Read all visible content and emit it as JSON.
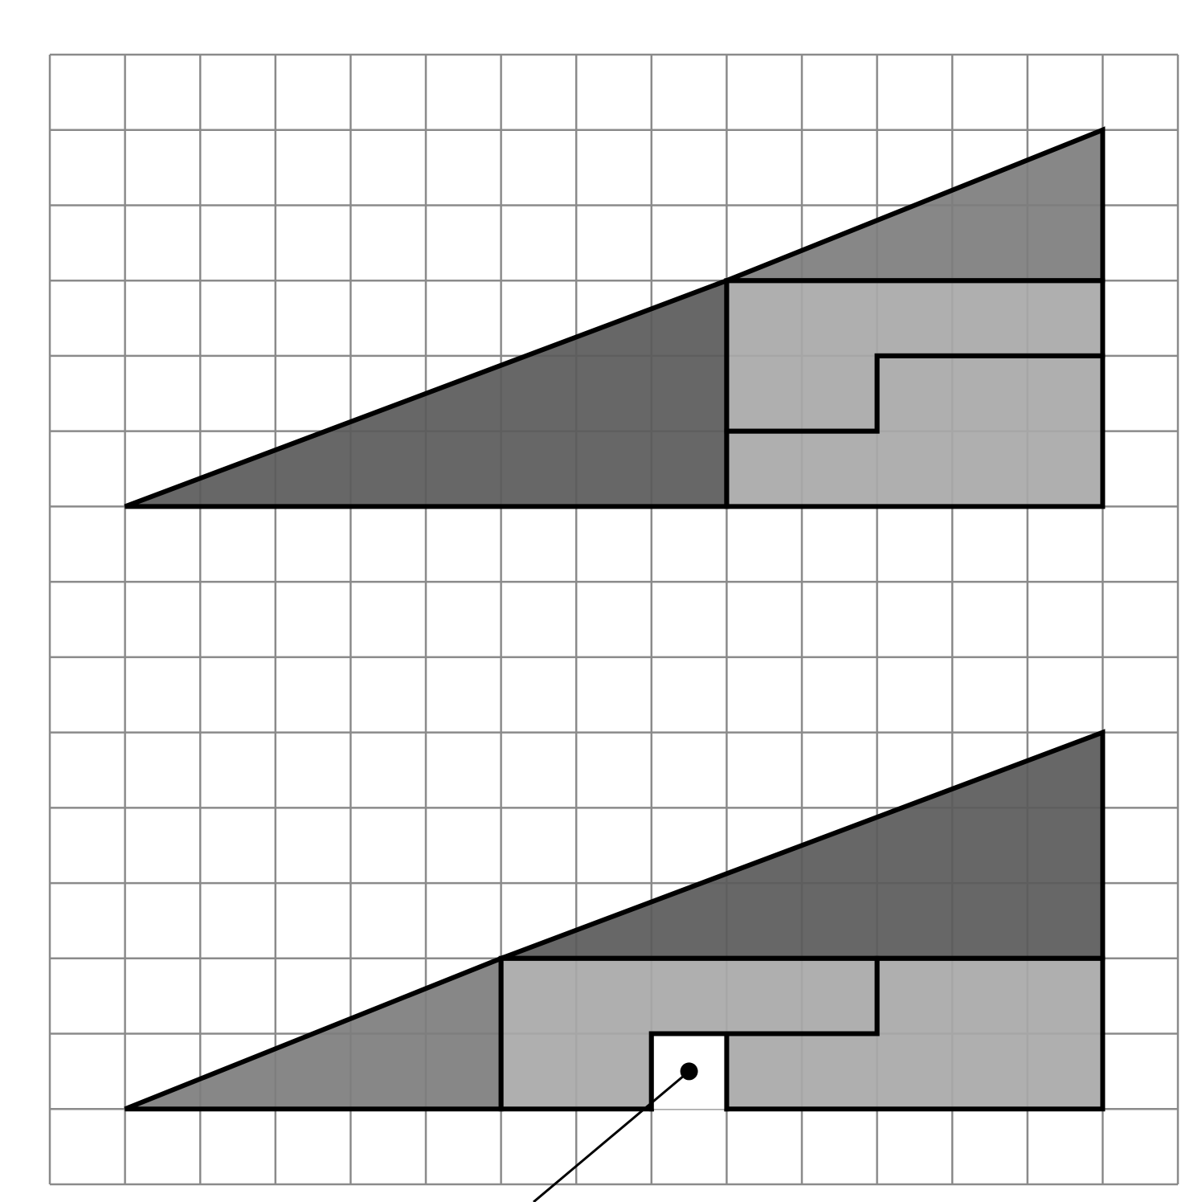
{
  "figure": {
    "description_visible_text": "",
    "grid": {
      "columns": 15,
      "rows": 15,
      "line_color": "#8a8a8a"
    },
    "colors": {
      "dark_gray": "#5a5a5a",
      "medium_gray": "#7d7d7d",
      "light_gray": "#a8a8a8",
      "outline": "#000000",
      "hole": "#ffffff"
    },
    "top_arrangement": {
      "pieces": [
        {
          "name": "large-triangle",
          "shade": "dark_gray",
          "grid_points": [
            [
              1,
              6
            ],
            [
              9,
              6
            ],
            [
              9,
              3
            ]
          ]
        },
        {
          "name": "small-triangle",
          "shade": "medium_gray",
          "grid_points": [
            [
              9,
              3
            ],
            [
              14,
              3
            ],
            [
              14,
              1
            ]
          ]
        },
        {
          "name": "l-shape-upper",
          "shade": "light_gray",
          "grid_points": [
            [
              9,
              3
            ],
            [
              14,
              3
            ],
            [
              14,
              4
            ],
            [
              11,
              4
            ],
            [
              11,
              5
            ],
            [
              9,
              5
            ]
          ]
        },
        {
          "name": "l-shape-lower",
          "shade": "light_gray",
          "grid_points": [
            [
              9,
              5
            ],
            [
              11,
              5
            ],
            [
              11,
              4
            ],
            [
              14,
              4
            ],
            [
              14,
              6
            ],
            [
              9,
              6
            ]
          ]
        }
      ]
    },
    "bottom_arrangement": {
      "pieces": [
        {
          "name": "small-triangle",
          "shade": "medium_gray",
          "grid_points": [
            [
              1,
              14
            ],
            [
              6,
              14
            ],
            [
              6,
              12
            ]
          ]
        },
        {
          "name": "large-triangle",
          "shade": "dark_gray",
          "grid_points": [
            [
              6,
              12
            ],
            [
              14,
              12
            ],
            [
              14,
              9
            ]
          ]
        },
        {
          "name": "l-shape-left",
          "shade": "light_gray",
          "grid_points": [
            [
              6,
              12
            ],
            [
              11,
              12
            ],
            [
              11,
              13
            ],
            [
              8,
              13
            ],
            [
              8,
              14
            ],
            [
              6,
              14
            ]
          ]
        },
        {
          "name": "l-shape-right",
          "shade": "light_gray",
          "grid_points": [
            [
              11,
              12
            ],
            [
              14,
              12
            ],
            [
              14,
              14
            ],
            [
              9,
              14
            ],
            [
              9,
              13
            ],
            [
              11,
              13
            ]
          ]
        }
      ],
      "hole": {
        "grid_points": [
          [
            8,
            13
          ],
          [
            9,
            13
          ],
          [
            9,
            14
          ],
          [
            8,
            14
          ]
        ],
        "marker_grid_point": [
          8.5,
          13.5
        ]
      }
    }
  }
}
